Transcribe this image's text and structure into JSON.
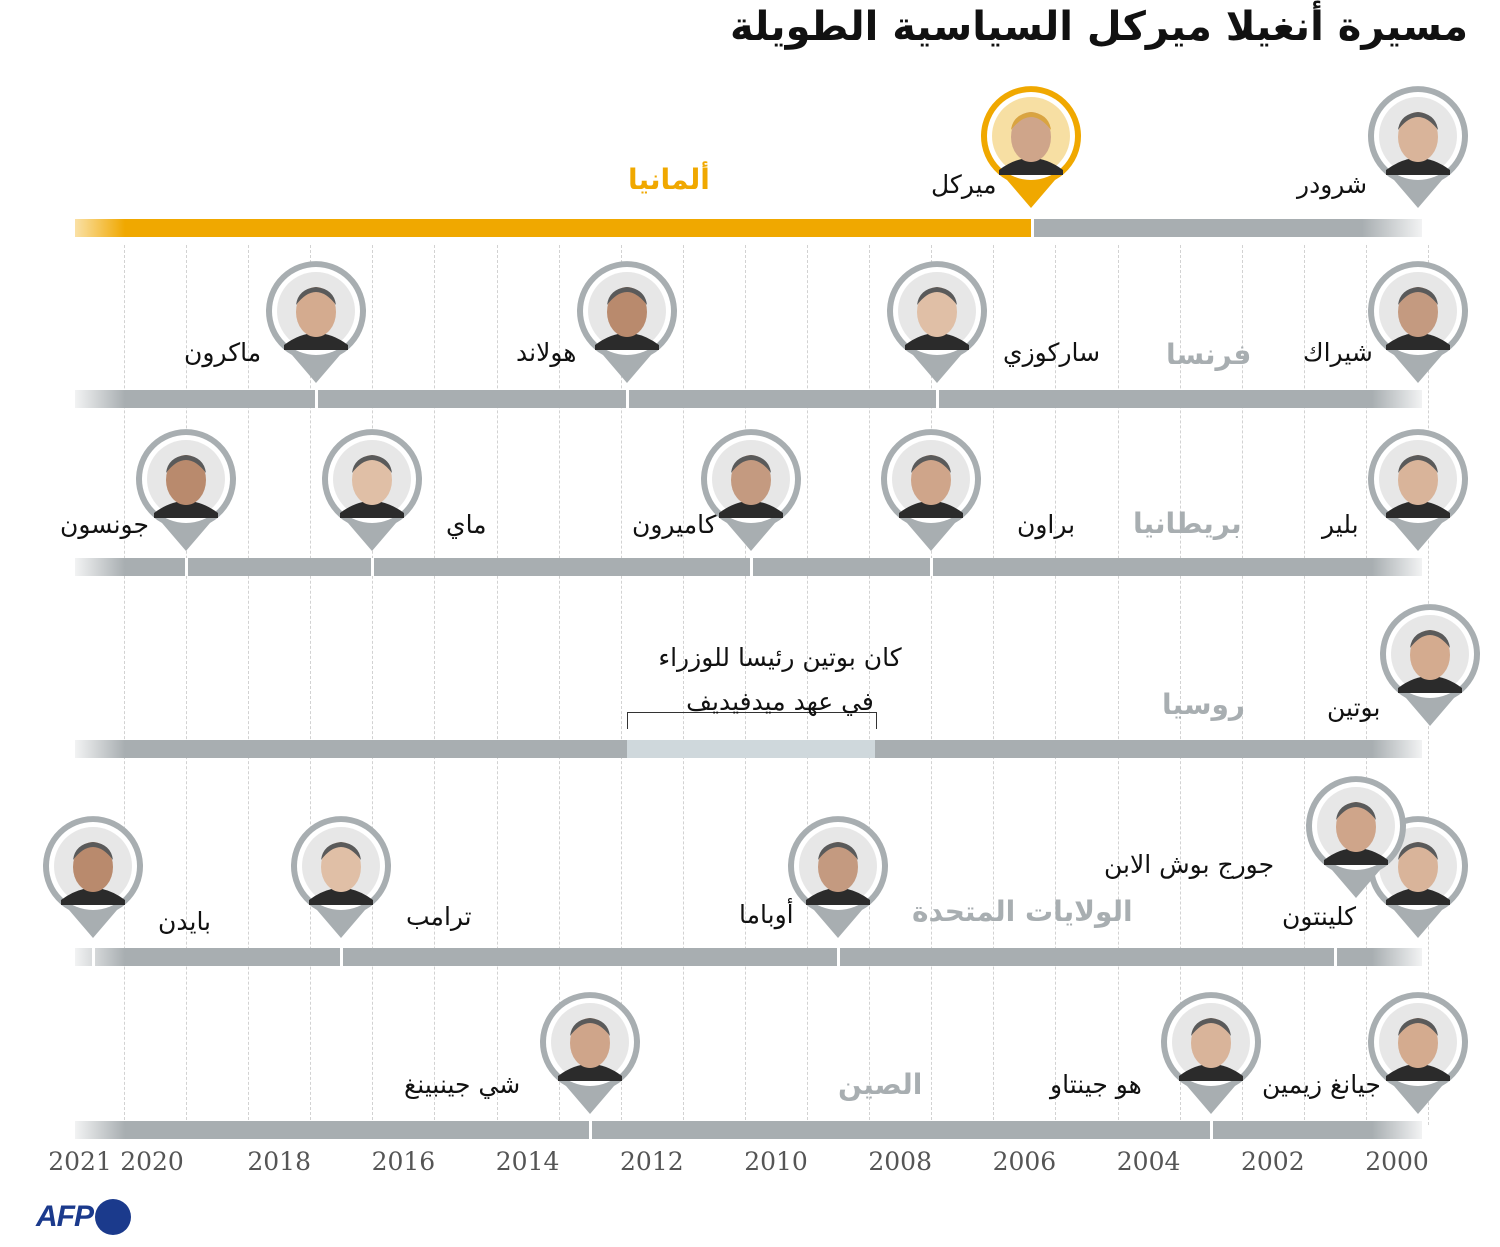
{
  "title": "مسيرة أنغيلا ميركل السياسية الطويلة",
  "colors": {
    "bar": "#a8aeb1",
    "highlight": "#f0a800",
    "note_bar": "#cfd8dc",
    "text": "#111111",
    "muted": "#a8aeb1",
    "brand": "#1b3a8c"
  },
  "years": [
    "2000",
    "2002",
    "2004",
    "2006",
    "2008",
    "2010",
    "2012",
    "2014",
    "2016",
    "2018",
    "2020",
    "2021"
  ],
  "countries": {
    "germany": {
      "label": "ألمانيا",
      "leaders": [
        {
          "name": "شرودر",
          "start": 2000,
          "icon": "schroeder-portrait"
        },
        {
          "name": "ميركل",
          "start": 2005.9,
          "icon": "merkel-portrait"
        }
      ]
    },
    "france": {
      "label": "فرنسا",
      "leaders": [
        {
          "name": "شيراك",
          "start": 2000,
          "icon": "chirac-portrait"
        },
        {
          "name": "ساركوزي",
          "start": 2007.4,
          "icon": "sarkozy-portrait"
        },
        {
          "name": "هولاند",
          "start": 2012.4,
          "icon": "hollande-portrait"
        },
        {
          "name": "ماكرون",
          "start": 2017.4,
          "icon": "macron-portrait"
        }
      ]
    },
    "uk": {
      "label": "بريطانيا",
      "leaders": [
        {
          "name": "بلير",
          "start": 2000,
          "icon": "blair-portrait"
        },
        {
          "name": "براون",
          "start": 2007.5,
          "icon": "brown-portrait"
        },
        {
          "name": "كاميرون",
          "start": 2010.4,
          "icon": "cameron-portrait"
        },
        {
          "name": "ماي",
          "start": 2016.5,
          "icon": "may-portrait"
        },
        {
          "name": "جونسون",
          "start": 2019.5,
          "icon": "johnson-portrait"
        }
      ]
    },
    "russia": {
      "label": "روسيا",
      "leaders": [
        {
          "name": "بوتين",
          "start": 2000,
          "icon": "putin-portrait"
        }
      ],
      "note": {
        "line1": "كان بوتين رئيسا للوزراء",
        "line2": "في عهد ميدفيديف",
        "start": 2008.4,
        "end": 2012.4
      }
    },
    "usa": {
      "label": "الولايات المتحدة",
      "leaders": [
        {
          "name": "كلينتون",
          "start": 2000,
          "icon": "clinton-portrait"
        },
        {
          "name": "جورج بوش الابن",
          "start": 2001,
          "icon": "bush-portrait"
        },
        {
          "name": "أوباما",
          "start": 2009,
          "icon": "obama-portrait"
        },
        {
          "name": "ترامب",
          "start": 2017,
          "icon": "trump-portrait"
        },
        {
          "name": "بايدن",
          "start": 2021,
          "icon": "biden-portrait"
        }
      ]
    },
    "china": {
      "label": "الصين",
      "leaders": [
        {
          "name": "جيانغ زيمين",
          "start": 2000,
          "icon": "jiang-portrait"
        },
        {
          "name": "هو جينتاو",
          "start": 2003,
          "icon": "hu-portrait"
        },
        {
          "name": "شي جينبينغ",
          "start": 2013,
          "icon": "xi-portrait"
        }
      ]
    }
  },
  "source": "AFP"
}
